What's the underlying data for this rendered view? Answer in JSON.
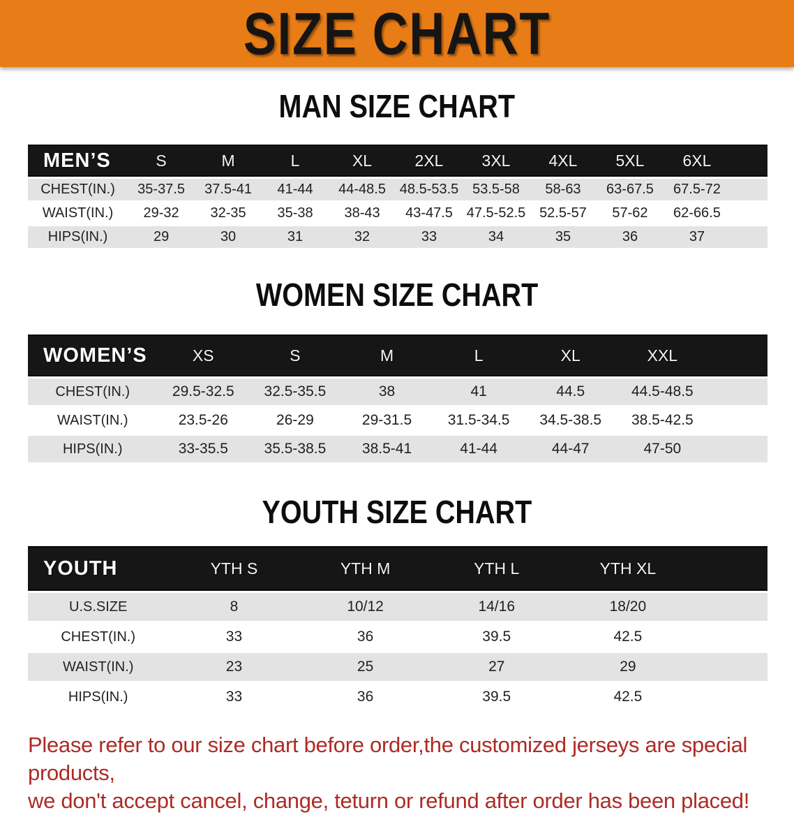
{
  "banner": {
    "title": "SIZE CHART",
    "bg_color": "#E87D17",
    "text_color": "#171513"
  },
  "sections": {
    "men": {
      "heading": "MAN SIZE CHART",
      "header_label": "MEN’S",
      "sizes": [
        "S",
        "M",
        "L",
        "XL",
        "2XL",
        "3XL",
        "4XL",
        "5XL",
        "6XL"
      ],
      "rows": [
        {
          "label": "CHEST(IN.)",
          "values": [
            "35-37.5",
            "37.5-41",
            "41-44",
            "44-48.5",
            "48.5-53.5",
            "53.5-58",
            "58-63",
            "63-67.5",
            "67.5-72"
          ]
        },
        {
          "label": "WAIST(IN.)",
          "values": [
            "29-32",
            "32-35",
            "35-38",
            "38-43",
            "43-47.5",
            "47.5-52.5",
            "52.5-57",
            "57-62",
            "62-66.5"
          ]
        },
        {
          "label": "HIPS(IN.)",
          "values": [
            "29",
            "30",
            "31",
            "32",
            "33",
            "34",
            "35",
            "36",
            "37"
          ]
        }
      ]
    },
    "women": {
      "heading": "WOMEN SIZE CHART",
      "header_label": "WOMEN’S",
      "sizes": [
        "XS",
        "S",
        "M",
        "L",
        "XL",
        "XXL"
      ],
      "rows": [
        {
          "label": "CHEST(IN.)",
          "values": [
            "29.5-32.5",
            "32.5-35.5",
            "38",
            "41",
            "44.5",
            "44.5-48.5"
          ]
        },
        {
          "label": "WAIST(IN.)",
          "values": [
            "23.5-26",
            "26-29",
            "29-31.5",
            "31.5-34.5",
            "34.5-38.5",
            "38.5-42.5"
          ]
        },
        {
          "label": "HIPS(IN.)",
          "values": [
            "33-35.5",
            "35.5-38.5",
            "38.5-41",
            "41-44",
            "44-47",
            "47-50"
          ]
        }
      ]
    },
    "youth": {
      "heading": "YOUTH SIZE CHART",
      "header_label": "YOUTH",
      "sizes": [
        "YTH S",
        "YTH M",
        "YTH L",
        "YTH XL"
      ],
      "rows": [
        {
          "label": "U.S.SIZE",
          "values": [
            "8",
            "10/12",
            "14/16",
            "18/20"
          ]
        },
        {
          "label": "CHEST(IN.)",
          "values": [
            "33",
            "36",
            "39.5",
            "42.5"
          ]
        },
        {
          "label": "WAIST(IN.)",
          "values": [
            "23",
            "25",
            "27",
            "29"
          ]
        },
        {
          "label": "HIPS(IN.)",
          "values": [
            "33",
            "36",
            "39.5",
            "42.5"
          ]
        }
      ]
    }
  },
  "disclaimer": {
    "line1": "Please refer to our size chart before order,the customized jerseys are special products,",
    "line2": "we don't accept cancel, change, teturn or refund after order has been placed!",
    "color": "#AD2B25"
  }
}
